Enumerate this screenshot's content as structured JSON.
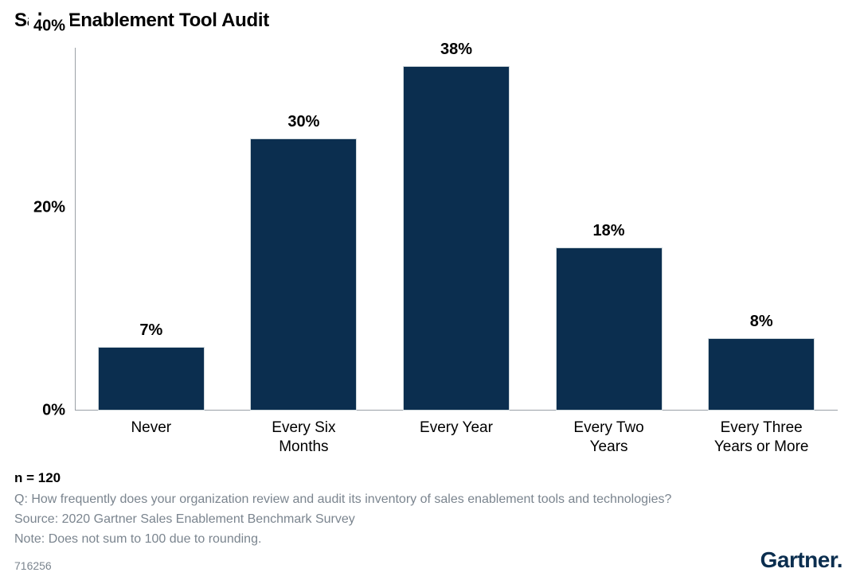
{
  "chart": {
    "type": "bar",
    "title": "Sales Enablement Tool Audit",
    "categories": [
      "Never",
      "Every Six\nMonths",
      "Every Year",
      "Every Two\nYears",
      "Every Three\nYears or More"
    ],
    "values": [
      7,
      30,
      38,
      18,
      8
    ],
    "value_labels": [
      "7%",
      "30%",
      "38%",
      "18%",
      "8%"
    ],
    "bar_color": "#0b2e4f",
    "bar_border_color": "#cfd8dc",
    "bar_width": 0.7,
    "ylim": [
      0,
      40
    ],
    "yticks": [
      0,
      20,
      40
    ],
    "ytick_labels": [
      "0%",
      "20%",
      "40%"
    ],
    "axis_color": "#9aa0a6",
    "background_color": "#ffffff",
    "title_fontsize": 24,
    "title_fontweight": 800,
    "value_label_fontsize": 20,
    "value_label_fontweight": 800,
    "xlabel_fontsize": 19,
    "ylabel_fontsize": 20
  },
  "footer": {
    "n_line": "n = 120",
    "question": "Q: How frequently does your organization review and audit its inventory of sales enablement tools and technologies?",
    "source": "Source: 2020 Gartner Sales Enablement Benchmark Survey",
    "note": "Note: Does not sum to 100 due to rounding.",
    "id": "716256",
    "footer_color": "#7b858f",
    "footer_fontsize": 16
  },
  "brand": {
    "name": "Gartner",
    "suffix": ".",
    "color": "#0b2e4f",
    "fontsize": 28
  }
}
